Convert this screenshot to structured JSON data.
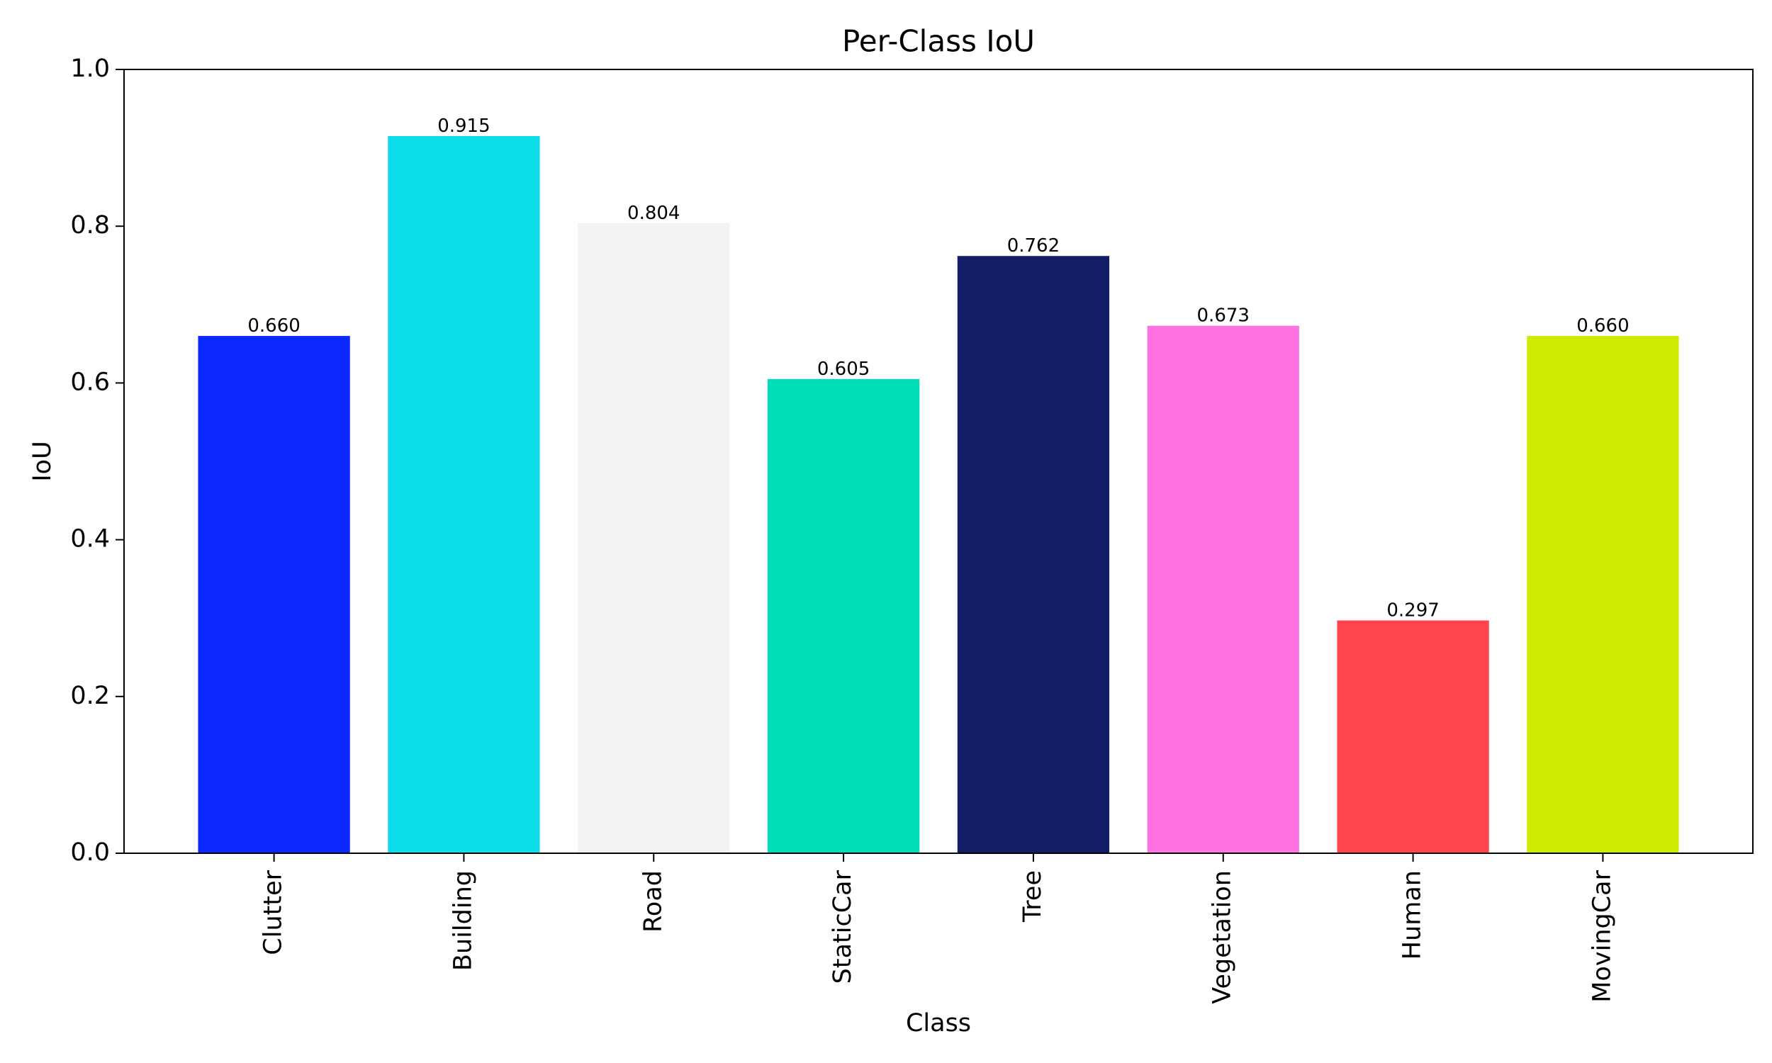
{
  "chart_data": {
    "type": "bar",
    "title": "Per-Class IoU",
    "x_label": "Class",
    "y_label": "IoU",
    "categories": [
      "Clutter",
      "Building",
      "Road",
      "StaticCar",
      "Tree",
      "Vegetation",
      "Human",
      "MovingCar"
    ],
    "values": [
      0.66,
      0.915,
      0.804,
      0.605,
      0.762,
      0.673,
      0.297,
      0.66
    ],
    "value_labels": [
      "0.660",
      "0.915",
      "0.804",
      "0.605",
      "0.762",
      "0.673",
      "0.297",
      "0.660"
    ],
    "colors": [
      "#0a28ff",
      "#0ddde9",
      "#f2f2f2",
      "#00ddb8",
      "#121f66",
      "#ff72e0",
      "#ff444e",
      "#cdec00"
    ],
    "ylim": [
      0,
      1
    ],
    "yticks": [
      {
        "value": 0,
        "label": "0.0"
      },
      {
        "value": 0.2,
        "label": "0.2"
      },
      {
        "value": 0.4,
        "label": "0.4"
      },
      {
        "value": 0.6,
        "label": "0.6"
      },
      {
        "value": 0.8,
        "label": "0.8"
      },
      {
        "value": 1,
        "label": "1.0"
      }
    ],
    "grid": false
  }
}
